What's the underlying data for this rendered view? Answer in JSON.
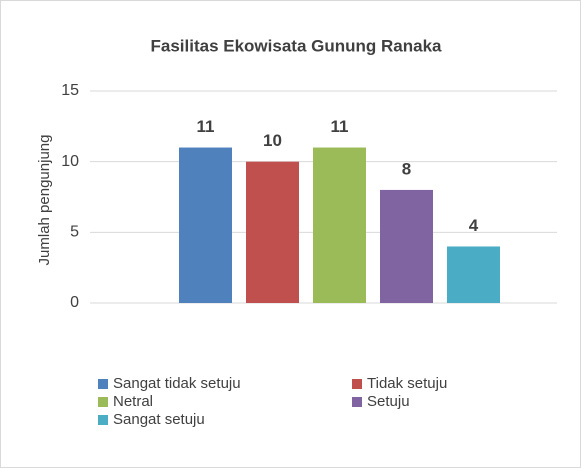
{
  "chart_data": {
    "type": "bar",
    "title": "Fasilitas Ekowisata Gunung Ranaka",
    "y_label": "Jumlah pengunjung",
    "categories": [
      null
    ],
    "series": [
      {
        "name": "Sangat tidak setuju",
        "color": "#4f81bd",
        "values": [
          11
        ]
      },
      {
        "name": "Tidak setuju",
        "color": "#c0504d",
        "values": [
          10
        ]
      },
      {
        "name": "Netral",
        "color": "#9bbb59",
        "values": [
          11
        ]
      },
      {
        "name": "Setuju",
        "color": "#8064a2",
        "values": [
          8
        ]
      },
      {
        "name": "Sangat setuju",
        "color": "#4bacc6",
        "values": [
          4
        ]
      }
    ],
    "ylim": [
      0,
      15
    ],
    "yticks": [
      0,
      5,
      10,
      15
    ],
    "grid": true,
    "legend": "bottom"
  }
}
